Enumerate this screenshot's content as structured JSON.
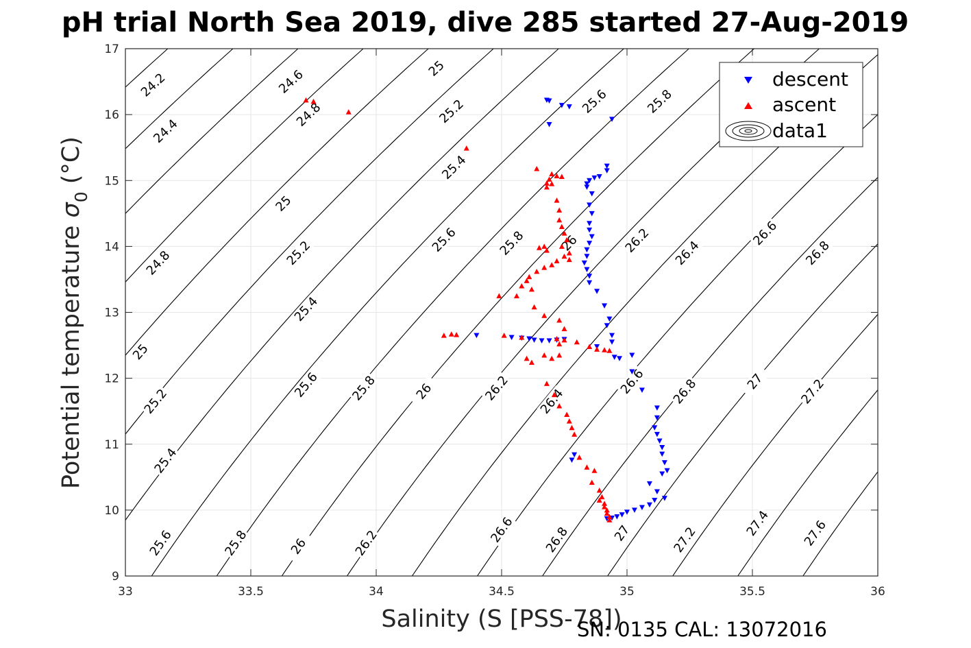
{
  "chart_data": {
    "type": "scatter",
    "title": "pH trial North Sea 2019, dive 285 started 27-Aug-2019",
    "xlabel": "Salinity (S [PSS-78])",
    "ylabel": "Potential temperature",
    "ylabel_symbol": "σ",
    "ylabel_subscript": "0",
    "ylabel_unit": "(°C)",
    "xlim": [
      33,
      36
    ],
    "ylim": [
      9,
      17
    ],
    "xticks": [
      33,
      33.5,
      34,
      34.5,
      35,
      35.5,
      36
    ],
    "yticks": [
      9,
      10,
      11,
      12,
      13,
      14,
      15,
      16,
      17
    ],
    "grid": true,
    "legend_position": "top-right",
    "legend": [
      "descent",
      "ascent",
      "data1"
    ],
    "footer": "SN: 0135  CAL: 13072016",
    "colors": {
      "descent": "#0000ff",
      "ascent": "#ff0000",
      "contour": "#000000",
      "grid": "#e6e6e6"
    },
    "contour_levels": [
      "24.2",
      "24.4",
      "24.6",
      "24.8",
      "25",
      "25.2",
      "25.4",
      "25.6",
      "25.8",
      "26",
      "26.2",
      "26.4",
      "26.6",
      "26.8",
      "27",
      "27.2",
      "27.4",
      "27.6"
    ],
    "contour_labels": [
      {
        "text": "24.2",
        "x": 33.11,
        "y": 16.45
      },
      {
        "text": "24.4",
        "x": 33.16,
        "y": 15.75
      },
      {
        "text": "24.6",
        "x": 33.66,
        "y": 16.5
      },
      {
        "text": "24.8",
        "x": 33.73,
        "y": 16.0
      },
      {
        "text": "25",
        "x": 34.24,
        "y": 16.7
      },
      {
        "text": "25.2",
        "x": 34.3,
        "y": 16.05
      },
      {
        "text": "25.4",
        "x": 34.31,
        "y": 15.2
      },
      {
        "text": "25.6",
        "x": 34.87,
        "y": 16.2
      },
      {
        "text": "25.8",
        "x": 35.13,
        "y": 16.2
      },
      {
        "text": "24.8",
        "x": 33.13,
        "y": 13.75
      },
      {
        "text": "25",
        "x": 33.63,
        "y": 14.65
      },
      {
        "text": "25.2",
        "x": 33.69,
        "y": 13.9
      },
      {
        "text": "25.4",
        "x": 33.72,
        "y": 13.05
      },
      {
        "text": "25.6",
        "x": 34.27,
        "y": 14.1
      },
      {
        "text": "25.8",
        "x": 34.54,
        "y": 14.05
      },
      {
        "text": "26",
        "x": 34.77,
        "y": 14.05
      },
      {
        "text": "26.2",
        "x": 35.04,
        "y": 14.09
      },
      {
        "text": "26.4",
        "x": 35.24,
        "y": 13.9
      },
      {
        "text": "26.6",
        "x": 35.55,
        "y": 14.2
      },
      {
        "text": "26.8",
        "x": 35.76,
        "y": 13.9
      },
      {
        "text": "25",
        "x": 33.06,
        "y": 12.4
      },
      {
        "text": "25.2",
        "x": 33.12,
        "y": 11.65
      },
      {
        "text": "25.4",
        "x": 33.16,
        "y": 10.75
      },
      {
        "text": "25.6",
        "x": 33.14,
        "y": 9.5
      },
      {
        "text": "25.6",
        "x": 33.72,
        "y": 11.9
      },
      {
        "text": "25.8",
        "x": 33.95,
        "y": 11.85
      },
      {
        "text": "26",
        "x": 34.19,
        "y": 11.8
      },
      {
        "text": "26.2",
        "x": 34.48,
        "y": 11.85
      },
      {
        "text": "26.4",
        "x": 34.7,
        "y": 11.65
      },
      {
        "text": "26.6",
        "x": 35.02,
        "y": 11.95
      },
      {
        "text": "26.8",
        "x": 35.23,
        "y": 11.8
      },
      {
        "text": "27",
        "x": 35.51,
        "y": 11.95
      },
      {
        "text": "27.2",
        "x": 35.74,
        "y": 11.8
      },
      {
        "text": "25.8",
        "x": 33.44,
        "y": 9.5
      },
      {
        "text": "26",
        "x": 33.69,
        "y": 9.45
      },
      {
        "text": "26.2",
        "x": 33.96,
        "y": 9.5
      },
      {
        "text": "26.6",
        "x": 34.5,
        "y": 9.7
      },
      {
        "text": "26.8",
        "x": 34.72,
        "y": 9.55
      },
      {
        "text": "27",
        "x": 34.98,
        "y": 9.65
      },
      {
        "text": "27.2",
        "x": 35.23,
        "y": 9.55
      },
      {
        "text": "27.4",
        "x": 35.52,
        "y": 9.8
      },
      {
        "text": "27.6",
        "x": 35.75,
        "y": 9.65
      }
    ],
    "series": [
      {
        "name": "descent",
        "marker": "triangle-down",
        "points": [
          [
            34.68,
            16.22
          ],
          [
            34.69,
            16.21
          ],
          [
            34.74,
            16.14
          ],
          [
            34.77,
            16.12
          ],
          [
            34.94,
            15.93
          ],
          [
            34.69,
            15.85
          ],
          [
            34.92,
            15.22
          ],
          [
            34.92,
            15.15
          ],
          [
            34.89,
            15.06
          ],
          [
            34.87,
            15.04
          ],
          [
            34.85,
            15.0
          ],
          [
            34.84,
            14.95
          ],
          [
            34.84,
            14.9
          ],
          [
            34.86,
            14.8
          ],
          [
            34.85,
            14.63
          ],
          [
            34.86,
            14.5
          ],
          [
            34.85,
            14.35
          ],
          [
            34.85,
            14.25
          ],
          [
            34.86,
            14.15
          ],
          [
            34.85,
            14.05
          ],
          [
            34.84,
            13.95
          ],
          [
            34.84,
            13.85
          ],
          [
            34.83,
            13.75
          ],
          [
            34.84,
            13.65
          ],
          [
            34.85,
            13.55
          ],
          [
            34.85,
            13.45
          ],
          [
            34.88,
            13.32
          ],
          [
            34.91,
            13.1
          ],
          [
            34.93,
            12.9
          ],
          [
            34.92,
            12.8
          ],
          [
            34.94,
            12.65
          ],
          [
            34.94,
            12.55
          ],
          [
            34.4,
            12.65
          ],
          [
            34.54,
            12.62
          ],
          [
            34.58,
            12.61
          ],
          [
            34.61,
            12.6
          ],
          [
            34.63,
            12.58
          ],
          [
            34.66,
            12.57
          ],
          [
            34.69,
            12.57
          ],
          [
            34.72,
            12.58
          ],
          [
            34.75,
            12.59
          ],
          [
            34.88,
            12.48
          ],
          [
            34.95,
            12.32
          ],
          [
            34.97,
            12.3
          ],
          [
            35.02,
            12.35
          ],
          [
            35.02,
            12.1
          ],
          [
            35.06,
            11.82
          ],
          [
            35.12,
            11.55
          ],
          [
            35.12,
            11.4
          ],
          [
            35.11,
            11.25
          ],
          [
            35.12,
            11.15
          ],
          [
            35.13,
            11.05
          ],
          [
            35.14,
            10.95
          ],
          [
            35.14,
            10.85
          ],
          [
            35.15,
            10.72
          ],
          [
            35.16,
            10.6
          ],
          [
            35.14,
            10.55
          ],
          [
            35.09,
            10.4
          ],
          [
            35.12,
            10.28
          ],
          [
            35.15,
            10.18
          ],
          [
            35.11,
            10.15
          ],
          [
            35.09,
            10.08
          ],
          [
            35.06,
            10.04
          ],
          [
            35.03,
            10.0
          ],
          [
            35.0,
            9.97
          ],
          [
            34.98,
            9.93
          ],
          [
            34.96,
            9.9
          ],
          [
            34.94,
            9.88
          ],
          [
            34.92,
            9.87
          ],
          [
            34.79,
            10.84
          ],
          [
            34.78,
            10.76
          ]
        ]
      },
      {
        "name": "ascent",
        "marker": "triangle-up",
        "points": [
          [
            33.72,
            16.22
          ],
          [
            33.75,
            16.2
          ],
          [
            33.89,
            16.04
          ],
          [
            34.36,
            15.49
          ],
          [
            34.64,
            15.18
          ],
          [
            34.7,
            15.1
          ],
          [
            34.72,
            15.07
          ],
          [
            34.74,
            15.06
          ],
          [
            34.69,
            15.02
          ],
          [
            34.68,
            14.96
          ],
          [
            34.7,
            14.95
          ],
          [
            34.68,
            14.9
          ],
          [
            34.72,
            14.7
          ],
          [
            34.73,
            14.55
          ],
          [
            34.73,
            14.4
          ],
          [
            34.74,
            14.3
          ],
          [
            34.75,
            14.2
          ],
          [
            34.76,
            14.1
          ],
          [
            34.74,
            14.0
          ],
          [
            34.67,
            14.0
          ],
          [
            34.65,
            13.98
          ],
          [
            34.68,
            13.94
          ],
          [
            34.77,
            13.9
          ],
          [
            34.75,
            13.85
          ],
          [
            34.77,
            13.8
          ],
          [
            34.72,
            13.78
          ],
          [
            34.7,
            13.72
          ],
          [
            34.67,
            13.68
          ],
          [
            34.64,
            13.62
          ],
          [
            34.61,
            13.54
          ],
          [
            34.6,
            13.48
          ],
          [
            34.58,
            13.4
          ],
          [
            34.62,
            13.35
          ],
          [
            34.49,
            13.25
          ],
          [
            34.56,
            13.25
          ],
          [
            34.63,
            13.08
          ],
          [
            34.67,
            12.95
          ],
          [
            34.73,
            12.88
          ],
          [
            34.75,
            12.75
          ],
          [
            34.27,
            12.65
          ],
          [
            34.3,
            12.67
          ],
          [
            34.32,
            12.66
          ],
          [
            34.51,
            12.65
          ],
          [
            34.58,
            12.62
          ],
          [
            34.72,
            12.6
          ],
          [
            34.75,
            12.58
          ],
          [
            34.8,
            12.55
          ],
          [
            34.85,
            12.48
          ],
          [
            34.88,
            12.44
          ],
          [
            34.91,
            12.43
          ],
          [
            34.93,
            12.42
          ],
          [
            34.73,
            12.52
          ],
          [
            34.6,
            12.3
          ],
          [
            34.62,
            12.24
          ],
          [
            34.67,
            12.35
          ],
          [
            34.7,
            12.3
          ],
          [
            34.73,
            12.35
          ],
          [
            34.68,
            11.92
          ],
          [
            34.71,
            11.75
          ],
          [
            34.73,
            11.58
          ],
          [
            34.76,
            11.45
          ],
          [
            34.77,
            11.35
          ],
          [
            34.78,
            11.25
          ],
          [
            34.79,
            11.15
          ],
          [
            34.81,
            10.8
          ],
          [
            34.84,
            10.65
          ],
          [
            34.87,
            10.6
          ],
          [
            34.86,
            10.42
          ],
          [
            34.89,
            10.3
          ],
          [
            34.9,
            10.2
          ],
          [
            34.89,
            10.15
          ],
          [
            34.91,
            10.1
          ],
          [
            34.91,
            10.05
          ],
          [
            34.92,
            10.0
          ],
          [
            34.92,
            9.95
          ],
          [
            34.93,
            9.9
          ],
          [
            34.93,
            9.85
          ]
        ]
      }
    ]
  }
}
